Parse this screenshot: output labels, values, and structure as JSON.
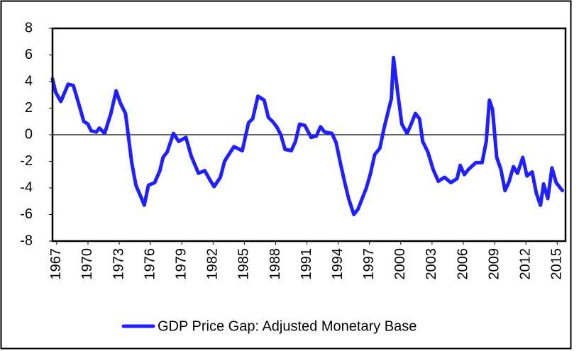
{
  "chart_data": {
    "type": "line",
    "x": [
      1966.6,
      1966.9,
      1967.4,
      1968.1,
      1968.6,
      1969.2,
      1969.6,
      1970.0,
      1970.3,
      1970.8,
      1971.1,
      1971.6,
      1972.2,
      1972.7,
      1973.1,
      1973.6,
      1974.2,
      1974.6,
      1975.2,
      1975.4,
      1975.8,
      1976.4,
      1976.9,
      1977.2,
      1977.6,
      1978.2,
      1978.7,
      1979.4,
      1979.9,
      1980.6,
      1981.2,
      1981.7,
      1982.1,
      1982.7,
      1983.1,
      1983.5,
      1984.0,
      1984.8,
      1985.4,
      1985.8,
      1986.3,
      1986.9,
      1987.3,
      1987.7,
      1988.1,
      1988.5,
      1988.9,
      1989.5,
      1989.9,
      1990.3,
      1990.8,
      1991.4,
      1991.9,
      1992.3,
      1992.7,
      1993.4,
      1993.8,
      1994.2,
      1994.6,
      1995.0,
      1995.5,
      1995.9,
      1996.3,
      1996.7,
      1997.1,
      1997.5,
      1998.0,
      1998.4,
      1998.9,
      1999.1,
      1999.3,
      1999.7,
      2000.1,
      2000.6,
      2001.0,
      2001.4,
      2001.8,
      2002.1,
      2002.6,
      2003.1,
      2003.6,
      2004.2,
      2004.8,
      2005.4,
      2005.7,
      2006.1,
      2006.5,
      2007.2,
      2007.8,
      2008.2,
      2008.5,
      2008.8,
      2009.2,
      2009.6,
      2010.0,
      2010.4,
      2010.8,
      2011.2,
      2011.7,
      2012.1,
      2012.6,
      2013.0,
      2013.4,
      2013.7,
      2014.1,
      2014.5,
      2014.9,
      2015.5
    ],
    "series": [
      {
        "name": "GDP Price Gap: Adjusted Monetary Base",
        "color": "#1f1fff",
        "values": [
          4.2,
          3.2,
          2.5,
          3.8,
          3.7,
          2.1,
          1.0,
          0.8,
          0.3,
          0.2,
          0.5,
          0.1,
          1.6,
          3.3,
          2.4,
          1.6,
          -2.1,
          -3.8,
          -4.9,
          -5.3,
          -3.8,
          -3.6,
          -2.7,
          -1.7,
          -1.3,
          0.1,
          -0.5,
          -0.2,
          -1.6,
          -2.9,
          -2.7,
          -3.4,
          -3.9,
          -3.2,
          -2.0,
          -1.5,
          -0.9,
          -1.2,
          0.9,
          1.2,
          2.9,
          2.6,
          1.3,
          1.0,
          0.6,
          0.0,
          -1.1,
          -1.2,
          -0.5,
          0.8,
          0.7,
          -0.2,
          -0.1,
          0.6,
          0.2,
          0.1,
          -0.6,
          -2.1,
          -3.5,
          -4.8,
          -6.0,
          -5.6,
          -4.8,
          -4.0,
          -2.9,
          -1.5,
          -1.0,
          0.5,
          2.1,
          2.7,
          5.8,
          3.2,
          0.8,
          0.1,
          0.8,
          1.6,
          1.2,
          -0.5,
          -1.3,
          -2.6,
          -3.5,
          -3.2,
          -3.6,
          -3.3,
          -2.3,
          -3.0,
          -2.6,
          -2.1,
          -2.1,
          -0.5,
          2.6,
          1.9,
          -1.7,
          -2.6,
          -4.2,
          -3.5,
          -2.4,
          -2.9,
          -1.7,
          -3.1,
          -2.8,
          -4.4,
          -5.3,
          -3.7,
          -4.8,
          -2.5,
          -3.6,
          -4.2
        ]
      }
    ],
    "xlim": [
      1966.6,
      2015.8
    ],
    "ylim": [
      -8,
      8
    ],
    "xticks": [
      1967,
      1970,
      1973,
      1976,
      1979,
      1982,
      1985,
      1988,
      1991,
      1994,
      1997,
      2000,
      2003,
      2006,
      2009,
      2012,
      2015
    ],
    "yticks": [
      -8,
      -6,
      -4,
      -2,
      0,
      2,
      4,
      6,
      8
    ],
    "zero_line": true,
    "legend": "bottom"
  }
}
